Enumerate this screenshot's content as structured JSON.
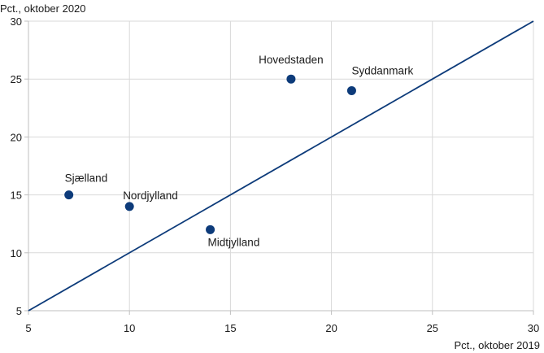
{
  "chart_data": {
    "type": "scatter",
    "title": "",
    "xlabel": "Pct., oktober 2019",
    "ylabel": "Pct., oktober 2020",
    "xlim": [
      5,
      30
    ],
    "ylim": [
      5,
      30
    ],
    "xticks": [
      5,
      10,
      15,
      20,
      25,
      30
    ],
    "yticks": [
      5,
      10,
      15,
      20,
      25,
      30
    ],
    "grid": true,
    "colors": {
      "points": "#0d3b7a",
      "line": "#0d3b7a",
      "grid": "#d9d9d9",
      "axis": "#bfbfbf"
    },
    "points": [
      {
        "label": "Sjælland",
        "x": 7,
        "y": 15
      },
      {
        "label": "Nordjylland",
        "x": 10,
        "y": 14
      },
      {
        "label": "Midtjylland",
        "x": 14,
        "y": 12
      },
      {
        "label": "Hovedstaden",
        "x": 18,
        "y": 25
      },
      {
        "label": "Syddanmark",
        "x": 21,
        "y": 24
      }
    ],
    "reference_line": {
      "from": [
        5,
        5
      ],
      "to": [
        30,
        30
      ]
    }
  }
}
